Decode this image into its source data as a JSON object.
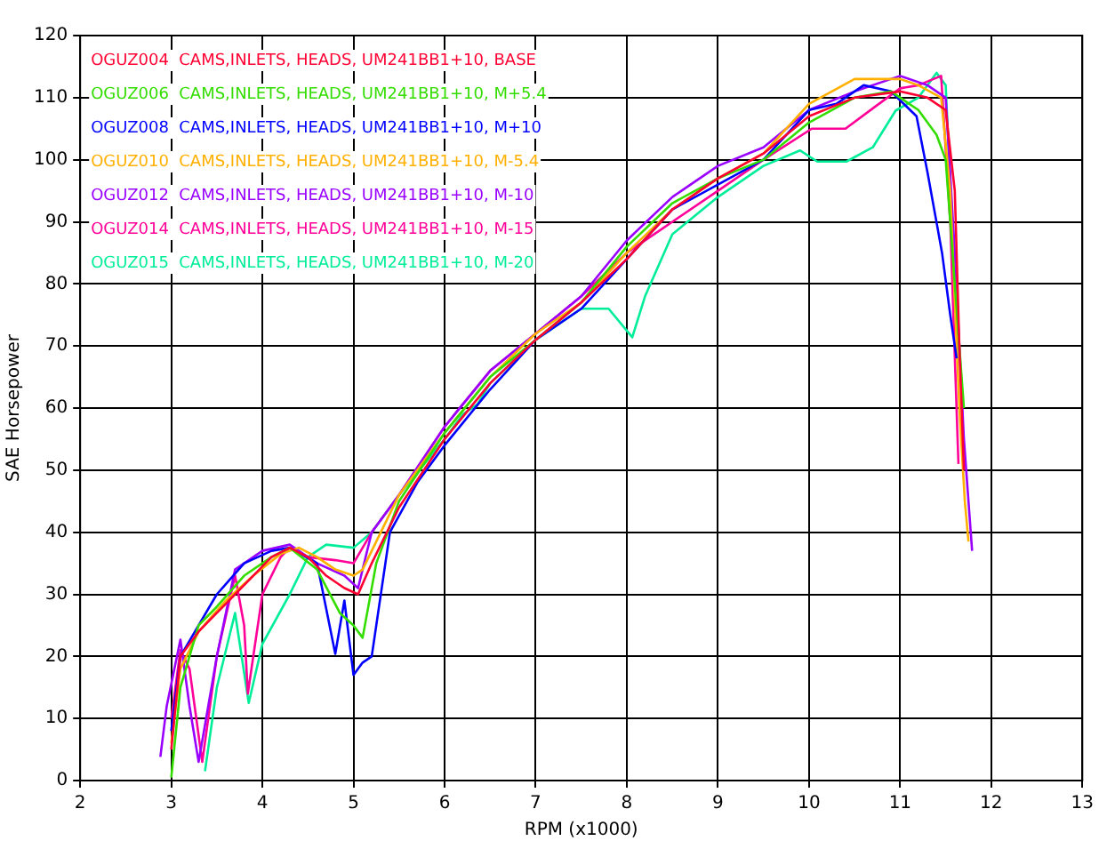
{
  "chart_data": {
    "type": "line",
    "xlabel": "RPM (x1000)",
    "ylabel": "SAE Horsepower",
    "xlim": [
      2,
      13
    ],
    "xticks": [
      2,
      3,
      4,
      5,
      6,
      7,
      8,
      9,
      10,
      11,
      12,
      13
    ],
    "ylim": [
      0,
      120
    ],
    "yticks": [
      0,
      10,
      20,
      30,
      40,
      50,
      60,
      70,
      80,
      90,
      100,
      110,
      120
    ],
    "grid": true,
    "legend": "top left",
    "marker": "none",
    "line_style": "solid",
    "series": [
      {
        "name": "OGUZ004  CAMS,INLETS, HEADS, UM241BB1+10, BASE",
        "color": "#ff0033",
        "x": [
          3.0,
          3.1,
          3.3,
          3.5,
          3.7,
          3.9,
          4.1,
          4.3,
          4.5,
          4.7,
          4.9,
          5.05,
          5.2,
          5.5,
          6,
          6.5,
          7,
          7.5,
          8,
          8.5,
          9,
          9.5,
          10,
          10.5,
          11,
          11.3,
          11.5,
          11.6,
          11.65,
          11.7
        ],
        "values": [
          5,
          20,
          24,
          27,
          30,
          33,
          36,
          37.5,
          36,
          33,
          31,
          30,
          35,
          44,
          55,
          64,
          71,
          77,
          84,
          92,
          97,
          101,
          107,
          110,
          111,
          110,
          108,
          95,
          70,
          50
        ]
      },
      {
        "name": "OGUZ006  CAMS,INLETS, HEADS, UM241BB1+10, M+5.4",
        "color": "#33dd00",
        "x": [
          3.0,
          3.1,
          3.3,
          3.5,
          3.8,
          4.1,
          4.3,
          4.6,
          4.85,
          5.0,
          5.1,
          5.25,
          5.5,
          6,
          6.5,
          7,
          7.5,
          8,
          8.5,
          9,
          9.5,
          10,
          10.5,
          10.9,
          11.2,
          11.4,
          11.5,
          11.6,
          11.7
        ],
        "values": [
          0.5,
          15,
          25,
          28,
          33,
          36,
          37.5,
          34,
          27,
          25,
          23,
          35,
          45,
          56,
          65,
          71,
          77,
          86,
          93,
          97,
          100,
          106,
          110,
          111,
          108,
          104,
          100,
          80,
          60
        ]
      },
      {
        "name": "OGUZ008  CAMS,INLETS, HEADS, UM241BB1+10, M+10",
        "color": "#0000ff",
        "x": [
          3.0,
          3.1,
          3.3,
          3.5,
          3.8,
          4.1,
          4.3,
          4.6,
          4.8,
          4.9,
          5.0,
          5.1,
          5.2,
          5.4,
          5.7,
          6,
          6.5,
          7,
          7.5,
          8,
          8.5,
          9,
          9.5,
          10,
          10.3,
          10.6,
          10.9,
          11.18,
          11.3,
          11.46,
          11.55,
          11.62
        ],
        "values": [
          8,
          20,
          25,
          30,
          35,
          37,
          37.5,
          35,
          20.4,
          29,
          17,
          19,
          20,
          40,
          48,
          54,
          63,
          71,
          76,
          84,
          92,
          96,
          100,
          108,
          109,
          112,
          111,
          107,
          98,
          85,
          75,
          68
        ]
      },
      {
        "name": "OGUZ010  CAMS,INLETS, HEADS, UM241BB1+10, M-5.4",
        "color": "#ffb000",
        "x": [
          3.0,
          3.1,
          3.3,
          3.6,
          3.9,
          4.2,
          4.4,
          4.6,
          4.8,
          5.0,
          5.1,
          5.3,
          5.5,
          6,
          6.5,
          7,
          7.5,
          8,
          8.5,
          9,
          9.5,
          10,
          10.5,
          11.0,
          11.2,
          11.45,
          11.55,
          11.65,
          11.71,
          11.75
        ],
        "values": [
          6,
          18,
          24,
          29,
          33,
          36.5,
          37.5,
          36,
          34,
          33,
          34,
          40,
          46,
          56,
          65,
          72,
          77,
          85,
          92,
          97,
          101,
          109,
          113,
          113,
          112,
          110,
          95,
          60,
          45,
          38.5
        ]
      },
      {
        "name": "OGUZ012  CAMS,INLETS, HEADS, UM241BB1+10, M-10",
        "color": "#9900ff",
        "x": [
          2.88,
          2.95,
          3.1,
          3.2,
          3.3,
          3.5,
          3.7,
          4.0,
          4.3,
          4.6,
          4.9,
          5.05,
          5.2,
          5.5,
          6,
          6.5,
          7,
          7.5,
          8,
          8.5,
          9,
          9.5,
          10,
          10.5,
          11.0,
          11.3,
          11.5,
          11.6,
          11.7,
          11.79
        ],
        "values": [
          3.8,
          12,
          22.7,
          12,
          3,
          20,
          34,
          37,
          38,
          35,
          33,
          31,
          40,
          46,
          57,
          66,
          72,
          78,
          87,
          94,
          99,
          102,
          108,
          111,
          113.5,
          112,
          110,
          85,
          55,
          37
        ]
      },
      {
        "name": "OGUZ014  CAMS,INLETS, HEADS, UM241BB1+10, M-15",
        "color": "#ff0099",
        "x": [
          3.0,
          3.1,
          3.2,
          3.34,
          3.5,
          3.7,
          3.8,
          3.84,
          4.0,
          4.2,
          4.3,
          4.5,
          4.8,
          5.0,
          5.2,
          5.5,
          6,
          6.5,
          7,
          7.5,
          8,
          8.5,
          9,
          9.5,
          10.03,
          10.4,
          10.74,
          11.0,
          11.2,
          11.45,
          11.55,
          11.64
        ],
        "values": [
          10,
          21,
          18,
          3,
          20,
          33,
          25,
          14,
          30,
          36,
          37.5,
          36,
          35.5,
          35,
          40,
          46,
          57,
          66,
          72,
          78,
          85,
          90,
          95,
          100,
          105,
          105,
          108.7,
          111.5,
          112,
          113.5,
          90,
          51
        ]
      },
      {
        "name": "OGUZ015  CAMS,INLETS, HEADS, UM241BB1+10, M-20",
        "color": "#00ee99",
        "x": [
          3.37,
          3.5,
          3.7,
          3.85,
          4.0,
          4.3,
          4.5,
          4.7,
          5.0,
          5.2,
          5.5,
          6.0,
          6.2,
          6.36,
          6.5,
          7,
          7.5,
          7.8,
          8.06,
          8.2,
          8.5,
          9.0,
          9.5,
          9.9,
          10.09,
          10.41,
          10.7,
          10.95,
          11.2,
          11.4,
          11.5,
          11.6,
          11.65
        ],
        "values": [
          1.5,
          15,
          27,
          12.5,
          22,
          30,
          36,
          38,
          37.5,
          40,
          46,
          55,
          59,
          60.6,
          64,
          71,
          76,
          76,
          71.4,
          78,
          88,
          94,
          99,
          101.5,
          99.7,
          99.7,
          102,
          107.9,
          110,
          114,
          112,
          80,
          68
        ]
      }
    ]
  }
}
